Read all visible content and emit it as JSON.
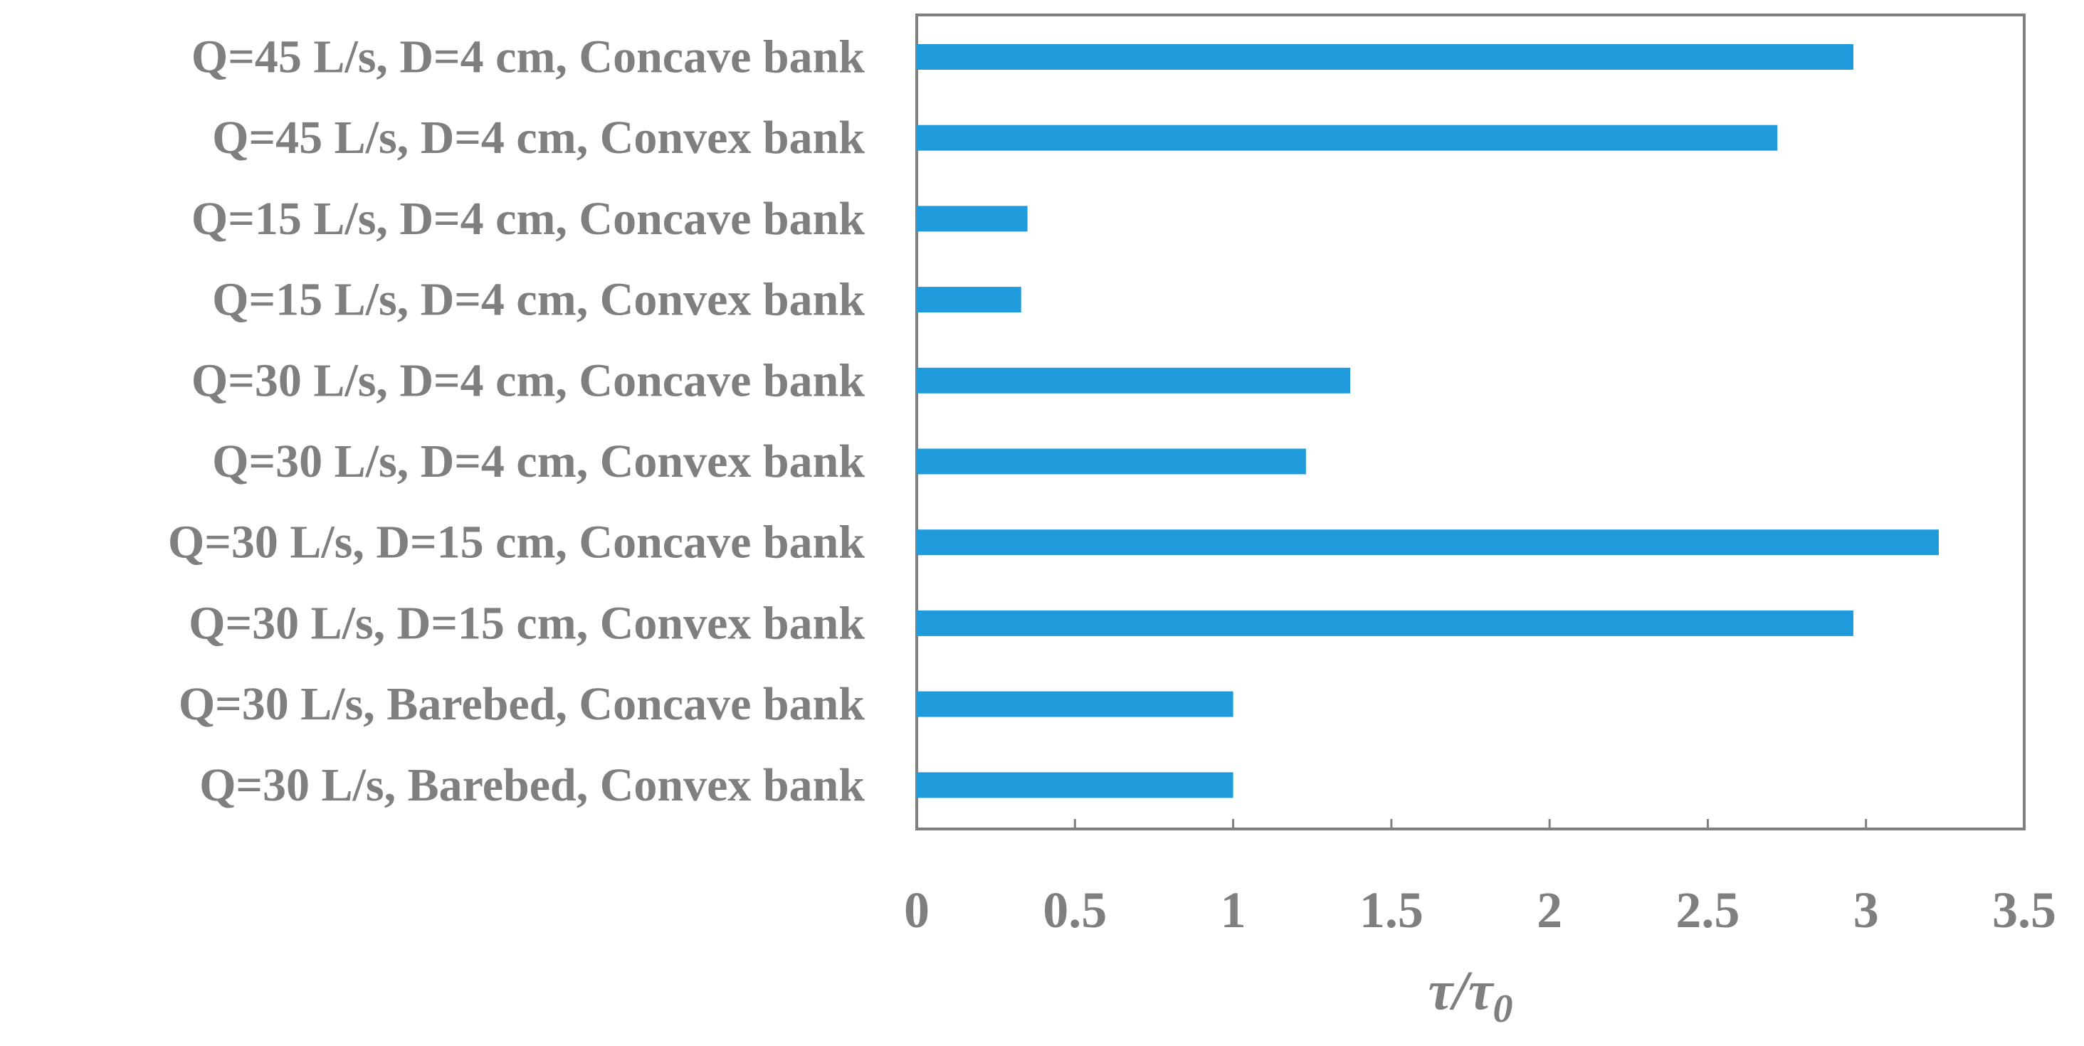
{
  "chart_data": {
    "type": "bar",
    "orientation": "horizontal",
    "categories": [
      "Q=45 L/s, D=4 cm, Concave bank",
      "Q=45 L/s, D=4 cm, Convex bank",
      "Q=15 L/s, D=4 cm, Concave bank",
      "Q=15 L/s, D=4 cm, Convex bank",
      "Q=30 L/s, D=4 cm, Concave bank",
      "Q=30 L/s, D=4 cm, Convex bank",
      "Q=30 L/s, D=15 cm, Concave bank",
      "Q=30 L/s, D=15 cm, Convex bank",
      "Q=30 L/s, Barebed, Concave bank",
      "Q=30 L/s, Barebed, Convex bank"
    ],
    "values": [
      2.96,
      2.72,
      0.35,
      0.33,
      1.37,
      1.23,
      3.23,
      2.96,
      1.0,
      1.0
    ],
    "title": "",
    "xlabel_main": "τ/τ",
    "xlabel_sub": "0",
    "ylabel": "",
    "xlim": [
      0,
      3.5
    ],
    "xticks": [
      "0",
      "0.5",
      "1",
      "1.5",
      "2",
      "2.5",
      "3",
      "3.5"
    ],
    "grid": false,
    "legend": "none",
    "colors": {
      "bar": "#1f9bdb",
      "axis": "#7f7f7f",
      "text": "#7f7f7f"
    }
  }
}
